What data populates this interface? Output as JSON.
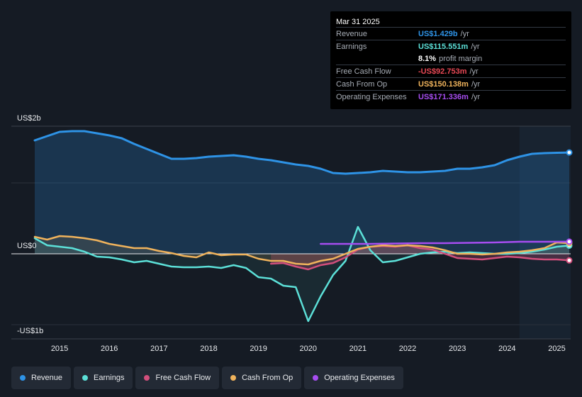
{
  "tooltip": {
    "date": "Mar 31 2025",
    "rows": [
      {
        "label": "Revenue",
        "value": "US$1.429b",
        "unit": "/yr",
        "color": "#2e93e6"
      },
      {
        "label": "Earnings",
        "value": "US$115.551m",
        "unit": "/yr",
        "color": "#5ce0d8"
      },
      {
        "label": "",
        "value": "8.1%",
        "unit": "profit margin",
        "color": "#ffffff"
      },
      {
        "label": "Free Cash Flow",
        "value": "-US$92.753m",
        "unit": "/yr",
        "color": "#e84855"
      },
      {
        "label": "Cash From Op",
        "value": "US$150.138m",
        "unit": "/yr",
        "color": "#f0b35c"
      },
      {
        "label": "Operating Expenses",
        "value": "US$171.336m",
        "unit": "/yr",
        "color": "#a64df0"
      }
    ]
  },
  "legend": [
    {
      "label": "Revenue",
      "color": "#2e93e6"
    },
    {
      "label": "Earnings",
      "color": "#5ce0d8"
    },
    {
      "label": "Free Cash Flow",
      "color": "#d24f7c"
    },
    {
      "label": "Cash From Op",
      "color": "#f0b35c"
    },
    {
      "label": "Operating Expenses",
      "color": "#a64df0"
    }
  ],
  "chart_data": {
    "type": "line",
    "title": "",
    "xlabel": "",
    "ylabel": "",
    "y_axis_labels": [
      "US$2b",
      "US$0",
      "-US$1b"
    ],
    "x_tick_labels": [
      "2015",
      "2016",
      "2017",
      "2018",
      "2019",
      "2020",
      "2021",
      "2022",
      "2023",
      "2024",
      "2025"
    ],
    "x_ticks": [
      2015,
      2016,
      2017,
      2018,
      2019,
      2020,
      2021,
      2022,
      2023,
      2024,
      2025
    ],
    "xlim": [
      2014.5,
      2025.25
    ],
    "ylim": [
      -1.2,
      1.8
    ],
    "units": "US$ billions",
    "highlight_start": 2024.25,
    "series": [
      {
        "name": "Revenue",
        "color": "#2e93e6",
        "x": [
          2014.5,
          2014.75,
          2015.0,
          2015.25,
          2015.5,
          2015.75,
          2016.0,
          2016.25,
          2016.5,
          2016.75,
          2017.0,
          2017.25,
          2017.5,
          2017.75,
          2018.0,
          2018.25,
          2018.5,
          2018.75,
          2019.0,
          2019.25,
          2019.5,
          2019.75,
          2020.0,
          2020.25,
          2020.5,
          2020.75,
          2021.0,
          2021.25,
          2021.5,
          2021.75,
          2022.0,
          2022.25,
          2022.5,
          2022.75,
          2023.0,
          2023.25,
          2023.5,
          2023.75,
          2024.0,
          2024.25,
          2024.5,
          2024.75,
          2025.0,
          2025.25
        ],
        "values": [
          1.6,
          1.66,
          1.72,
          1.73,
          1.73,
          1.7,
          1.67,
          1.63,
          1.55,
          1.48,
          1.41,
          1.34,
          1.34,
          1.35,
          1.37,
          1.38,
          1.39,
          1.37,
          1.34,
          1.32,
          1.29,
          1.26,
          1.24,
          1.2,
          1.14,
          1.13,
          1.14,
          1.15,
          1.17,
          1.16,
          1.15,
          1.15,
          1.16,
          1.17,
          1.2,
          1.2,
          1.22,
          1.25,
          1.32,
          1.37,
          1.41,
          1.42,
          1.425,
          1.429
        ]
      },
      {
        "name": "Earnings",
        "color": "#5ce0d8",
        "x": [
          2014.5,
          2014.75,
          2015.0,
          2015.25,
          2015.5,
          2015.75,
          2016.0,
          2016.25,
          2016.5,
          2016.75,
          2017.0,
          2017.25,
          2017.5,
          2017.75,
          2018.0,
          2018.25,
          2018.5,
          2018.75,
          2019.0,
          2019.25,
          2019.5,
          2019.75,
          2020.0,
          2020.25,
          2020.5,
          2020.75,
          2021.0,
          2021.25,
          2021.5,
          2021.75,
          2022.0,
          2022.25,
          2022.5,
          2022.75,
          2023.0,
          2023.25,
          2023.5,
          2023.75,
          2024.0,
          2024.25,
          2024.5,
          2024.75,
          2025.0,
          2025.25
        ],
        "values": [
          0.22,
          0.12,
          0.1,
          0.08,
          0.03,
          -0.04,
          -0.05,
          -0.08,
          -0.12,
          -0.1,
          -0.14,
          -0.18,
          -0.19,
          -0.19,
          -0.18,
          -0.2,
          -0.16,
          -0.2,
          -0.33,
          -0.35,
          -0.45,
          -0.47,
          -0.95,
          -0.6,
          -0.3,
          -0.1,
          0.38,
          0.05,
          -0.12,
          -0.1,
          -0.05,
          0.0,
          0.02,
          0.03,
          0.01,
          0.02,
          0.01,
          0.0,
          0.0,
          0.01,
          0.03,
          0.06,
          0.1,
          0.116
        ]
      },
      {
        "name": "Free Cash Flow",
        "color": "#d24f7c",
        "x": [
          2019.25,
          2019.5,
          2019.75,
          2020.0,
          2020.25,
          2020.5,
          2020.75,
          2021.0,
          2021.25,
          2021.5,
          2021.75,
          2022.0,
          2022.25,
          2022.5,
          2022.75,
          2023.0,
          2023.25,
          2023.5,
          2023.75,
          2024.0,
          2024.25,
          2024.5,
          2024.75,
          2025.0,
          2025.25
        ],
        "values": [
          -0.14,
          -0.13,
          -0.18,
          -0.22,
          -0.16,
          -0.13,
          -0.05,
          0.06,
          0.1,
          0.11,
          0.1,
          0.12,
          0.08,
          0.06,
          0.0,
          -0.06,
          -0.07,
          -0.08,
          -0.06,
          -0.04,
          -0.05,
          -0.07,
          -0.08,
          -0.08,
          -0.093
        ]
      },
      {
        "name": "Cash From Op",
        "color": "#f0b35c",
        "x": [
          2014.5,
          2014.75,
          2015.0,
          2015.25,
          2015.5,
          2015.75,
          2016.0,
          2016.25,
          2016.5,
          2016.75,
          2017.0,
          2017.25,
          2017.5,
          2017.75,
          2018.0,
          2018.25,
          2018.5,
          2018.75,
          2019.0,
          2019.25,
          2019.5,
          2019.75,
          2020.0,
          2020.25,
          2020.5,
          2020.75,
          2021.0,
          2021.25,
          2021.5,
          2021.75,
          2022.0,
          2022.25,
          2022.5,
          2022.75,
          2023.0,
          2023.25,
          2023.5,
          2023.75,
          2024.0,
          2024.25,
          2024.5,
          2024.75,
          2025.0,
          2025.25
        ],
        "values": [
          0.24,
          0.2,
          0.25,
          0.24,
          0.22,
          0.19,
          0.14,
          0.11,
          0.08,
          0.08,
          0.04,
          0.01,
          -0.03,
          -0.05,
          0.02,
          -0.02,
          -0.01,
          -0.01,
          -0.07,
          -0.1,
          -0.1,
          -0.14,
          -0.15,
          -0.1,
          -0.07,
          0.0,
          0.07,
          0.1,
          0.12,
          0.11,
          0.12,
          0.11,
          0.09,
          0.05,
          0.0,
          0.0,
          -0.01,
          0.0,
          0.02,
          0.03,
          0.05,
          0.08,
          0.16,
          0.15
        ]
      },
      {
        "name": "Operating Expenses",
        "color": "#a64df0",
        "x": [
          2020.25,
          2020.75,
          2021.25,
          2021.75,
          2022.25,
          2022.75,
          2023.25,
          2023.75,
          2024.25,
          2024.75,
          2025.25
        ],
        "values": [
          0.14,
          0.14,
          0.14,
          0.145,
          0.15,
          0.15,
          0.155,
          0.16,
          0.17,
          0.17,
          0.171
        ]
      }
    ]
  }
}
